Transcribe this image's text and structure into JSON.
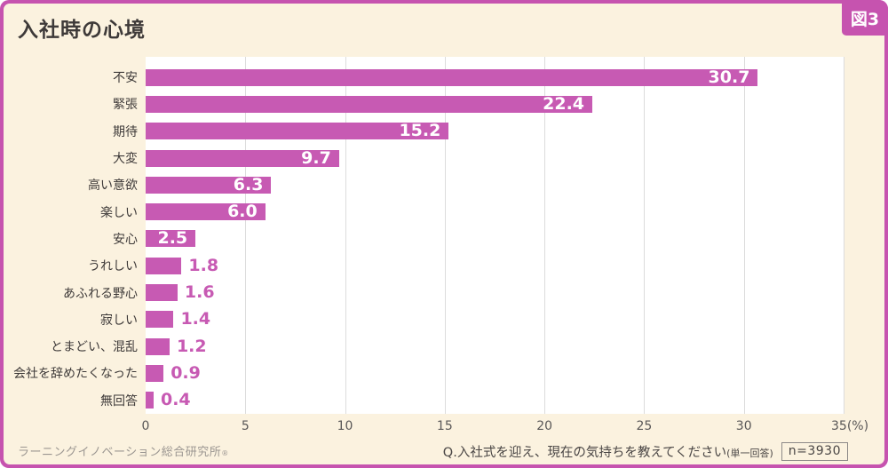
{
  "badge": {
    "label": "図3"
  },
  "title": "入社時の心境",
  "chart_data": {
    "type": "bar",
    "orientation": "horizontal",
    "title": "入社時の心境",
    "categories": [
      "不安",
      "緊張",
      "期待",
      "大変",
      "高い意欲",
      "楽しい",
      "安心",
      "うれしい",
      "あふれる野心",
      "寂しい",
      "とまどい、混乱",
      "会社を辞めたくなった",
      "無回答"
    ],
    "values": [
      30.7,
      22.4,
      15.2,
      9.7,
      6.3,
      6.0,
      2.5,
      1.8,
      1.6,
      1.4,
      1.2,
      0.9,
      0.4
    ],
    "xlim": [
      0,
      35
    ],
    "xticks": [
      0,
      5,
      10,
      15,
      20,
      25,
      30,
      35
    ],
    "x_unit": "(%)",
    "grid": true,
    "legend": false,
    "inside_label_min": 2.5,
    "colors": {
      "bar": "#c75ab3",
      "frame": "#c653af",
      "page_bg": "#fbf2df",
      "plot_bg": "#ffffff",
      "gridline": "#dcdcdc",
      "value_inside": "#ffffff",
      "value_outside": "#c75ab3"
    }
  },
  "footer": {
    "source": "ラーニングイノベーション総合研究所",
    "source_mark": "®",
    "question": "Q.入社式を迎え、現在の気持ちを教えてください",
    "question_note": "(単一回答)",
    "sample_size": "n=3930"
  }
}
